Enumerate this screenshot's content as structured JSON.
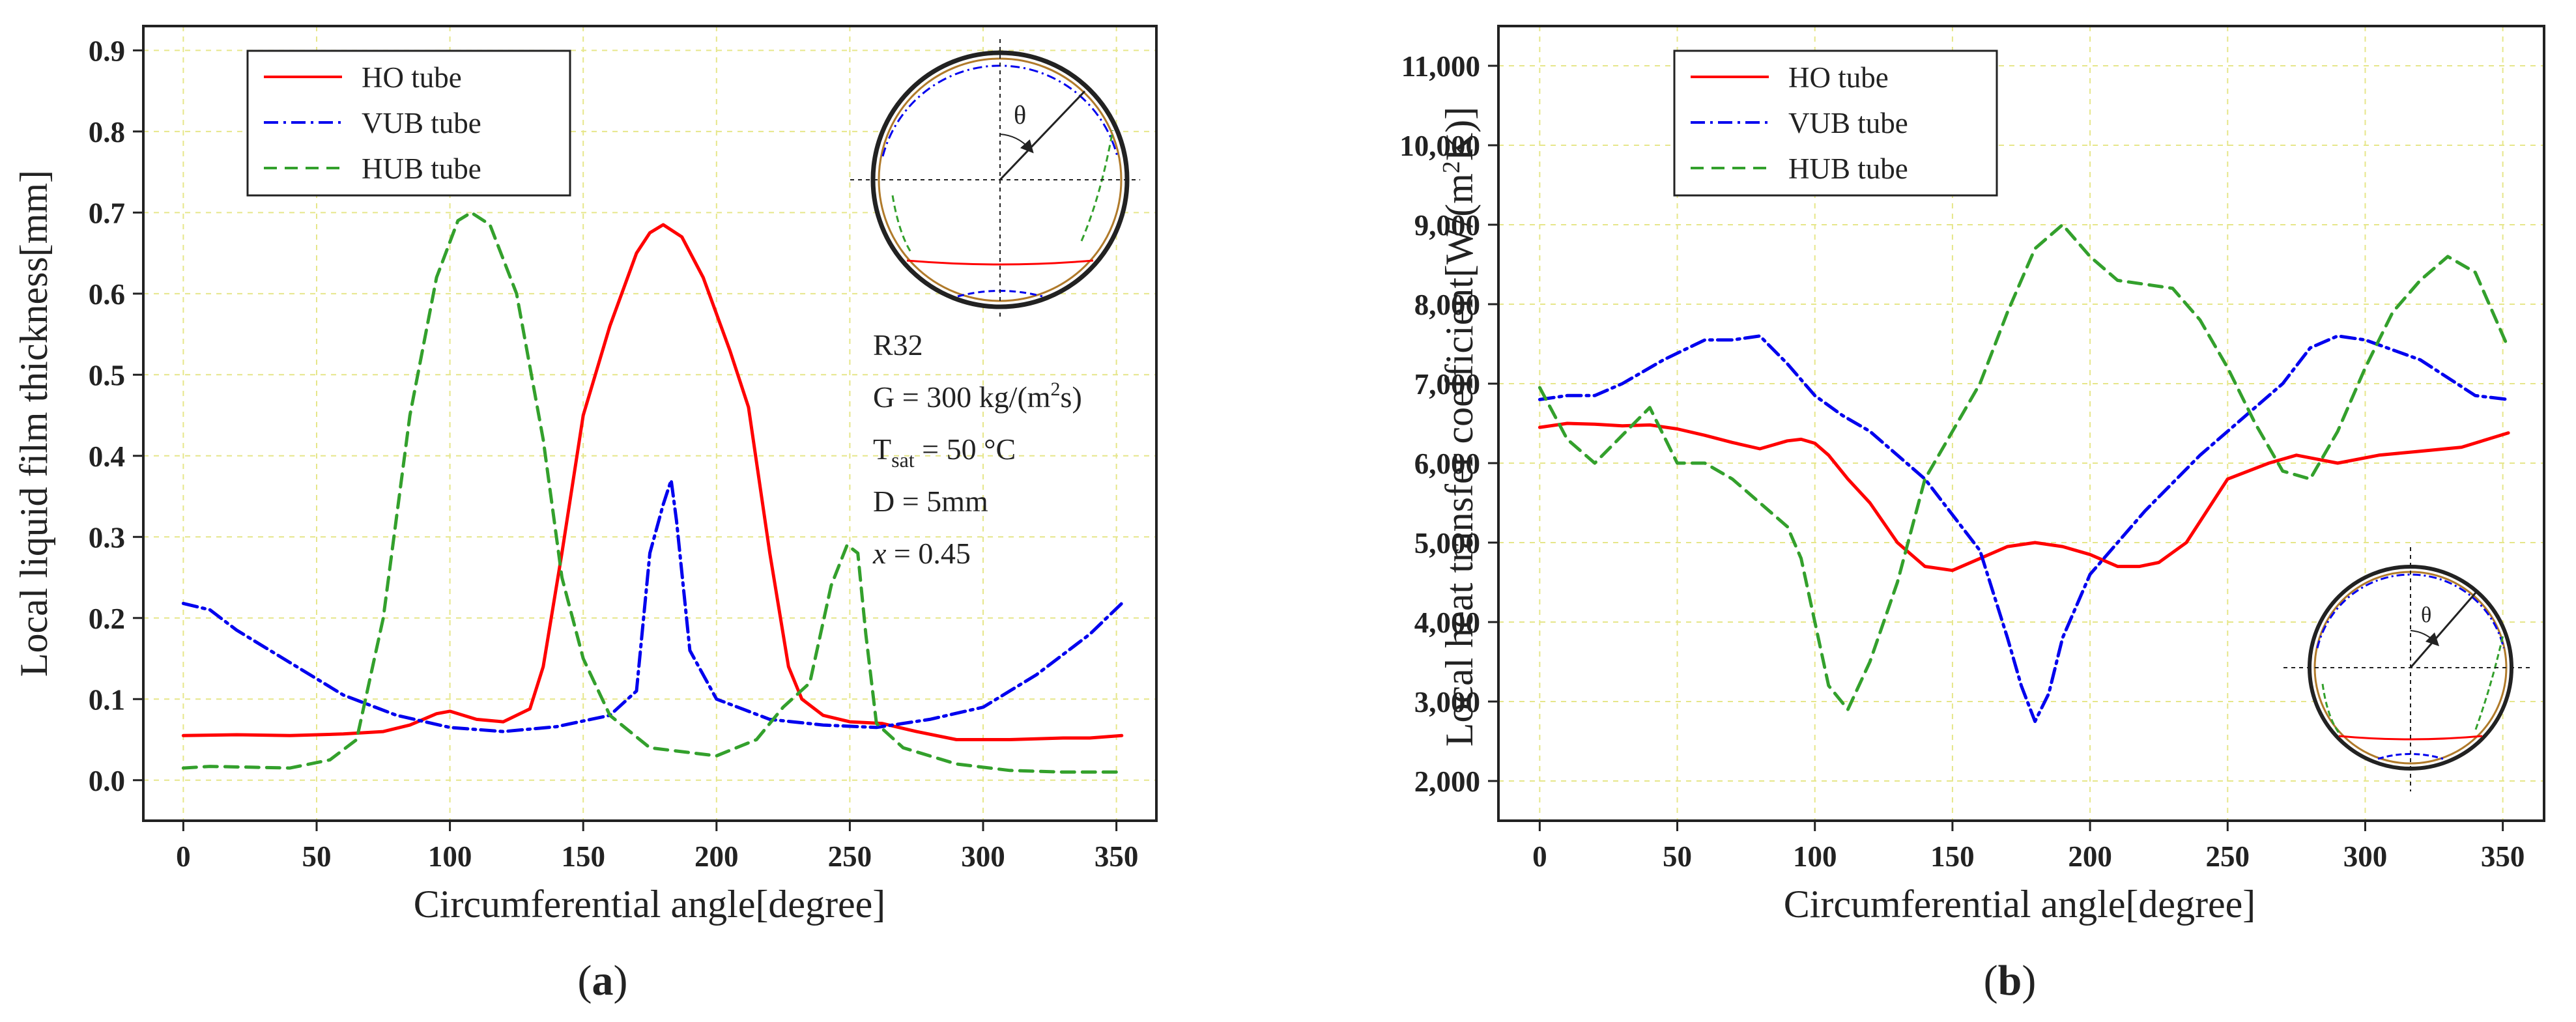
{
  "panels": [
    {
      "caption_open": "(",
      "caption_letter": "a",
      "caption_close": ")",
      "inset_theta": "θ",
      "annotation": {
        "fluid": "R32",
        "g_prefix": "G = 300 kg/(m",
        "g_sup": "2",
        "g_suffix": "s)",
        "t_main": "T",
        "t_sub": "sat",
        "t_value": " = 50 °C",
        "d_text": "D = 5mm",
        "x_var": "x",
        "x_value": " = 0.45"
      }
    },
    {
      "caption_open": "(",
      "caption_letter": "b",
      "caption_close": ")",
      "inset_theta": "θ"
    }
  ],
  "colors": {
    "ho": "#ff0000",
    "vub": "#0000ee",
    "hub": "#33a02c",
    "grid": "#e6e68a"
  },
  "chart_data": [
    {
      "type": "line",
      "title": "",
      "xlabel": "Circumferential angle[degree]",
      "ylabel": "Local liquid film thickness[mm]",
      "xlim": [
        -15,
        365
      ],
      "ylim": [
        -0.05,
        0.93
      ],
      "xticks": [
        0,
        50,
        100,
        150,
        200,
        250,
        300,
        350
      ],
      "xtick_labels": [
        "0",
        "50",
        "100",
        "150",
        "200",
        "250",
        "300",
        "350"
      ],
      "yticks": [
        0.0,
        0.1,
        0.2,
        0.3,
        0.4,
        0.5,
        0.6,
        0.7,
        0.8,
        0.9
      ],
      "ytick_labels": [
        "0.0",
        "0.1",
        "0.2",
        "0.3",
        "0.4",
        "0.5",
        "0.6",
        "0.7",
        "0.8",
        "0.9"
      ],
      "legend": "top-left",
      "series": [
        {
          "name": "HO tube",
          "style": "solid",
          "x": [
            0,
            20,
            40,
            60,
            75,
            85,
            95,
            100,
            110,
            120,
            130,
            135,
            142,
            150,
            160,
            170,
            175,
            180,
            187,
            195,
            205,
            212,
            220,
            227,
            232,
            240,
            250,
            262,
            275,
            290,
            310,
            330,
            340,
            352
          ],
          "y": [
            0.055,
            0.056,
            0.055,
            0.057,
            0.06,
            0.068,
            0.082,
            0.085,
            0.075,
            0.072,
            0.088,
            0.14,
            0.28,
            0.45,
            0.56,
            0.65,
            0.675,
            0.685,
            0.67,
            0.62,
            0.53,
            0.46,
            0.28,
            0.14,
            0.1,
            0.08,
            0.072,
            0.07,
            0.06,
            0.05,
            0.05,
            0.052,
            0.052,
            0.055
          ]
        },
        {
          "name": "VUB tube",
          "style": "dashdot",
          "x": [
            0,
            10,
            20,
            40,
            60,
            80,
            100,
            120,
            140,
            160,
            170,
            175,
            180,
            183,
            185,
            190,
            200,
            220,
            240,
            260,
            280,
            300,
            320,
            340,
            352
          ],
          "y": [
            0.218,
            0.21,
            0.185,
            0.145,
            0.105,
            0.08,
            0.065,
            0.06,
            0.066,
            0.08,
            0.11,
            0.28,
            0.34,
            0.37,
            0.32,
            0.16,
            0.1,
            0.075,
            0.068,
            0.065,
            0.075,
            0.09,
            0.13,
            0.18,
            0.218
          ]
        },
        {
          "name": "HUB tube",
          "style": "dash",
          "x": [
            0,
            10,
            25,
            40,
            55,
            65,
            75,
            85,
            95,
            103,
            108,
            115,
            125,
            135,
            142,
            150,
            160,
            175,
            200,
            215,
            225,
            235,
            243,
            249,
            253,
            256,
            260,
            270,
            290,
            310,
            330,
            352
          ],
          "y": [
            0.015,
            0.017,
            0.016,
            0.015,
            0.025,
            0.05,
            0.2,
            0.45,
            0.62,
            0.69,
            0.7,
            0.685,
            0.6,
            0.42,
            0.25,
            0.15,
            0.08,
            0.04,
            0.03,
            0.05,
            0.09,
            0.12,
            0.24,
            0.29,
            0.28,
            0.18,
            0.07,
            0.04,
            0.02,
            0.012,
            0.01,
            0.01
          ]
        }
      ]
    },
    {
      "type": "line",
      "title": "",
      "xlabel": "Circumferential angle[degree]",
      "ylabel": "Local heat transfer coefficient[W/(m²K)]",
      "ylabel_prefix": "Local heat transfer coefficient[W/(m",
      "ylabel_sup": "2",
      "ylabel_suffix": "K)]",
      "xlim": [
        -15,
        365
      ],
      "ylim": [
        1500,
        11500
      ],
      "xticks": [
        0,
        50,
        100,
        150,
        200,
        250,
        300,
        350
      ],
      "xtick_labels": [
        "0",
        "50",
        "100",
        "150",
        "200",
        "250",
        "300",
        "350"
      ],
      "yticks": [
        2000,
        3000,
        4000,
        5000,
        6000,
        7000,
        8000,
        9000,
        10000,
        11000
      ],
      "ytick_labels": [
        "2,000",
        "3,000",
        "4,000",
        "5,000",
        "6,000",
        "7,000",
        "8,000",
        "9,000",
        "10,000",
        "11,000"
      ],
      "legend": "top-left",
      "series": [
        {
          "name": "HO tube",
          "style": "solid",
          "x": [
            0,
            10,
            20,
            30,
            40,
            50,
            60,
            70,
            80,
            90,
            95,
            100,
            105,
            112,
            120,
            130,
            140,
            150,
            160,
            170,
            180,
            190,
            200,
            210,
            218,
            225,
            235,
            250,
            265,
            275,
            290,
            305,
            320,
            335,
            352
          ],
          "y": [
            6450,
            6500,
            6490,
            6470,
            6480,
            6430,
            6350,
            6260,
            6180,
            6280,
            6300,
            6250,
            6100,
            5800,
            5500,
            5000,
            4700,
            4650,
            4800,
            4950,
            5000,
            4950,
            4850,
            4700,
            4700,
            4750,
            5000,
            5800,
            6000,
            6100,
            6000,
            6100,
            6150,
            6200,
            6380
          ]
        },
        {
          "name": "VUB tube",
          "style": "dashdot",
          "x": [
            0,
            10,
            20,
            30,
            45,
            60,
            70,
            80,
            90,
            100,
            110,
            120,
            140,
            160,
            170,
            175,
            180,
            185,
            190,
            200,
            220,
            240,
            260,
            270,
            280,
            290,
            300,
            320,
            340,
            352
          ],
          "y": [
            6800,
            6850,
            6850,
            7000,
            7300,
            7550,
            7550,
            7600,
            7250,
            6850,
            6600,
            6400,
            5800,
            4900,
            3800,
            3200,
            2750,
            3100,
            3800,
            4600,
            5400,
            6100,
            6700,
            7000,
            7450,
            7600,
            7550,
            7300,
            6850,
            6800
          ]
        },
        {
          "name": "HUB tube",
          "style": "dash",
          "x": [
            0,
            10,
            20,
            30,
            40,
            50,
            60,
            70,
            80,
            90,
            95,
            100,
            105,
            112,
            120,
            130,
            140,
            150,
            160,
            170,
            180,
            190,
            200,
            210,
            220,
            230,
            240,
            250,
            260,
            270,
            280,
            290,
            300,
            310,
            320,
            330,
            340,
            352
          ],
          "y": [
            6950,
            6300,
            6000,
            6350,
            6700,
            6000,
            6000,
            5800,
            5500,
            5200,
            4800,
            4000,
            3200,
            2900,
            3500,
            4500,
            5800,
            6400,
            7000,
            7900,
            8700,
            9000,
            8600,
            8300,
            8250,
            8200,
            7800,
            7200,
            6500,
            5900,
            5800,
            6400,
            7200,
            7900,
            8300,
            8600,
            8400,
            7450
          ]
        }
      ]
    }
  ]
}
